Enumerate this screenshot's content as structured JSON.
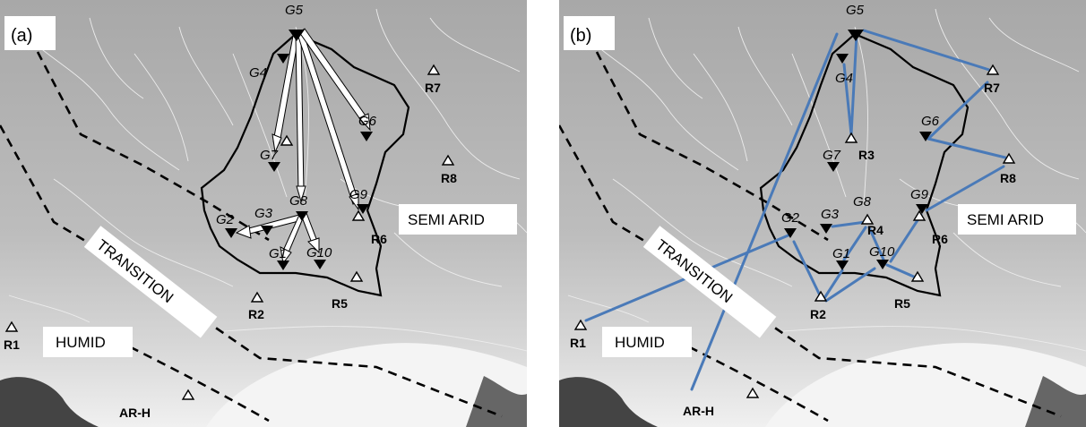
{
  "panels": [
    {
      "label": "(a)",
      "regions": {
        "semi_arid": "SEMI ARID",
        "transition": "TRANSITION",
        "humid": "HUMID"
      },
      "gauges": [
        "G5",
        "G4",
        "G6",
        "G7",
        "G9",
        "G8",
        "G2",
        "G3",
        "G1",
        "G10"
      ],
      "rain_stations": [
        "R7",
        "R8",
        "R6",
        "R2",
        "R5",
        "R1",
        "AR-H"
      ]
    },
    {
      "label": "(b)",
      "regions": {
        "semi_arid": "SEMI ARID",
        "transition": "TRANSITION",
        "humid": "HUMID"
      },
      "gauges": [
        "G5",
        "G4",
        "G6",
        "G7",
        "G9",
        "G8",
        "G2",
        "G3",
        "G1",
        "G10"
      ],
      "rain_stations": [
        "R7",
        "R3",
        "R8",
        "R4",
        "R6",
        "R2",
        "R5",
        "R1",
        "AR-H"
      ]
    }
  ],
  "colors": {
    "arrow_fill_a": "#ffffff",
    "link_b": "#4a7ab8",
    "marker": "#000000"
  }
}
